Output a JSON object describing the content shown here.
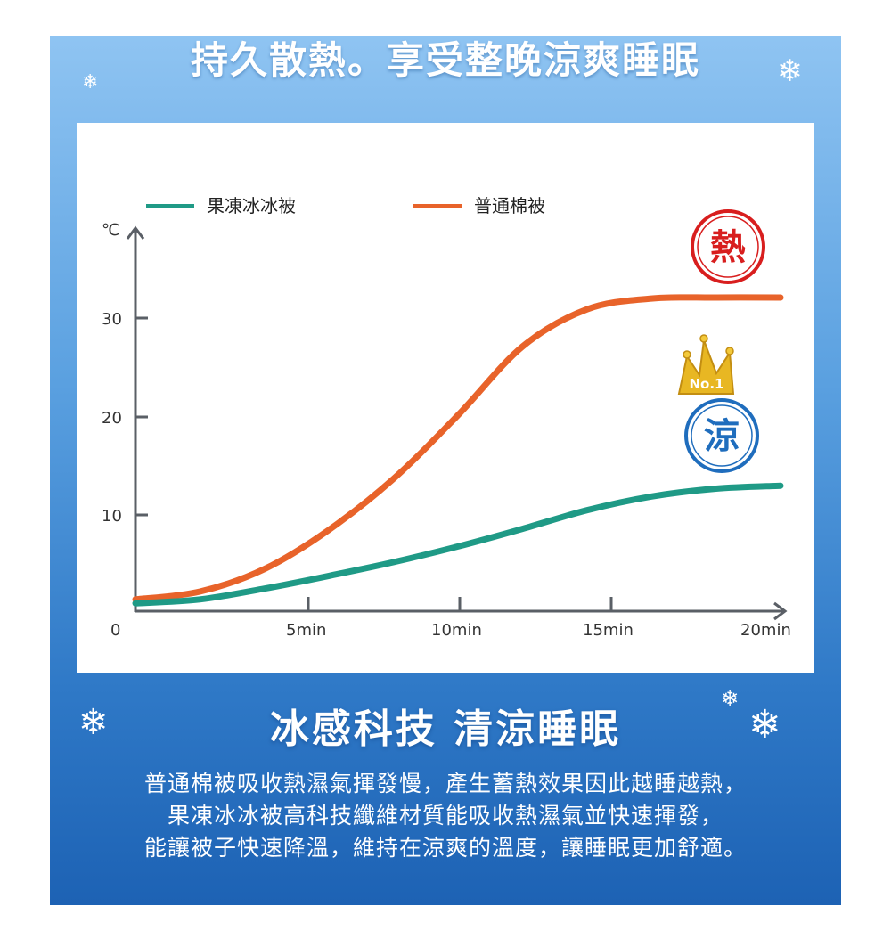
{
  "header": {
    "title": "持久散熱。享受整晚涼爽睡眠"
  },
  "icons": {
    "snowflake": "snowflake-icon",
    "crown": "crown-icon"
  },
  "chart_data": {
    "type": "line",
    "ylabel": "℃",
    "x_ticks": [
      "0",
      "5min",
      "10min",
      "15min",
      "20min"
    ],
    "y_ticks": [
      "10",
      "20",
      "30"
    ],
    "xlim": [
      0,
      20
    ],
    "ylim": [
      0,
      36
    ],
    "legend_position": "top",
    "series": [
      {
        "name": "果凍冰冰被",
        "color": "#1f9a86",
        "x": [
          0,
          2,
          4,
          6,
          8,
          10,
          12,
          14,
          16,
          18,
          20
        ],
        "values": [
          0.8,
          1.2,
          2.3,
          3.6,
          5.0,
          6.6,
          8.4,
          10.3,
          11.7,
          12.5,
          12.8
        ]
      },
      {
        "name": "普通棉被",
        "color": "#e8632a",
        "x": [
          0,
          2,
          4,
          6,
          8,
          10,
          12,
          14,
          16,
          18,
          20
        ],
        "values": [
          1.2,
          2.0,
          4.3,
          8.3,
          13.5,
          20.0,
          27.0,
          30.8,
          31.9,
          32.0,
          32.0
        ]
      }
    ],
    "annotations": {
      "hot_label": "熱",
      "cool_label": "涼",
      "badge_text": "No.1",
      "hot_color": "#d81e1e",
      "cool_color": "#1f6dbd",
      "badge_color": "#e8b723"
    }
  },
  "footer": {
    "subtitle": "冰感科技 清涼睡眠",
    "lines": [
      "普通棉被吸收熱濕氣揮發慢，產生蓄熱效果因此越睡越熱，",
      "果凍冰冰被高科技纖維材質能吸收熱濕氣並快速揮發，",
      "能讓被子快速降溫，維持在涼爽的溫度，讓睡眠更加舒適。"
    ]
  }
}
